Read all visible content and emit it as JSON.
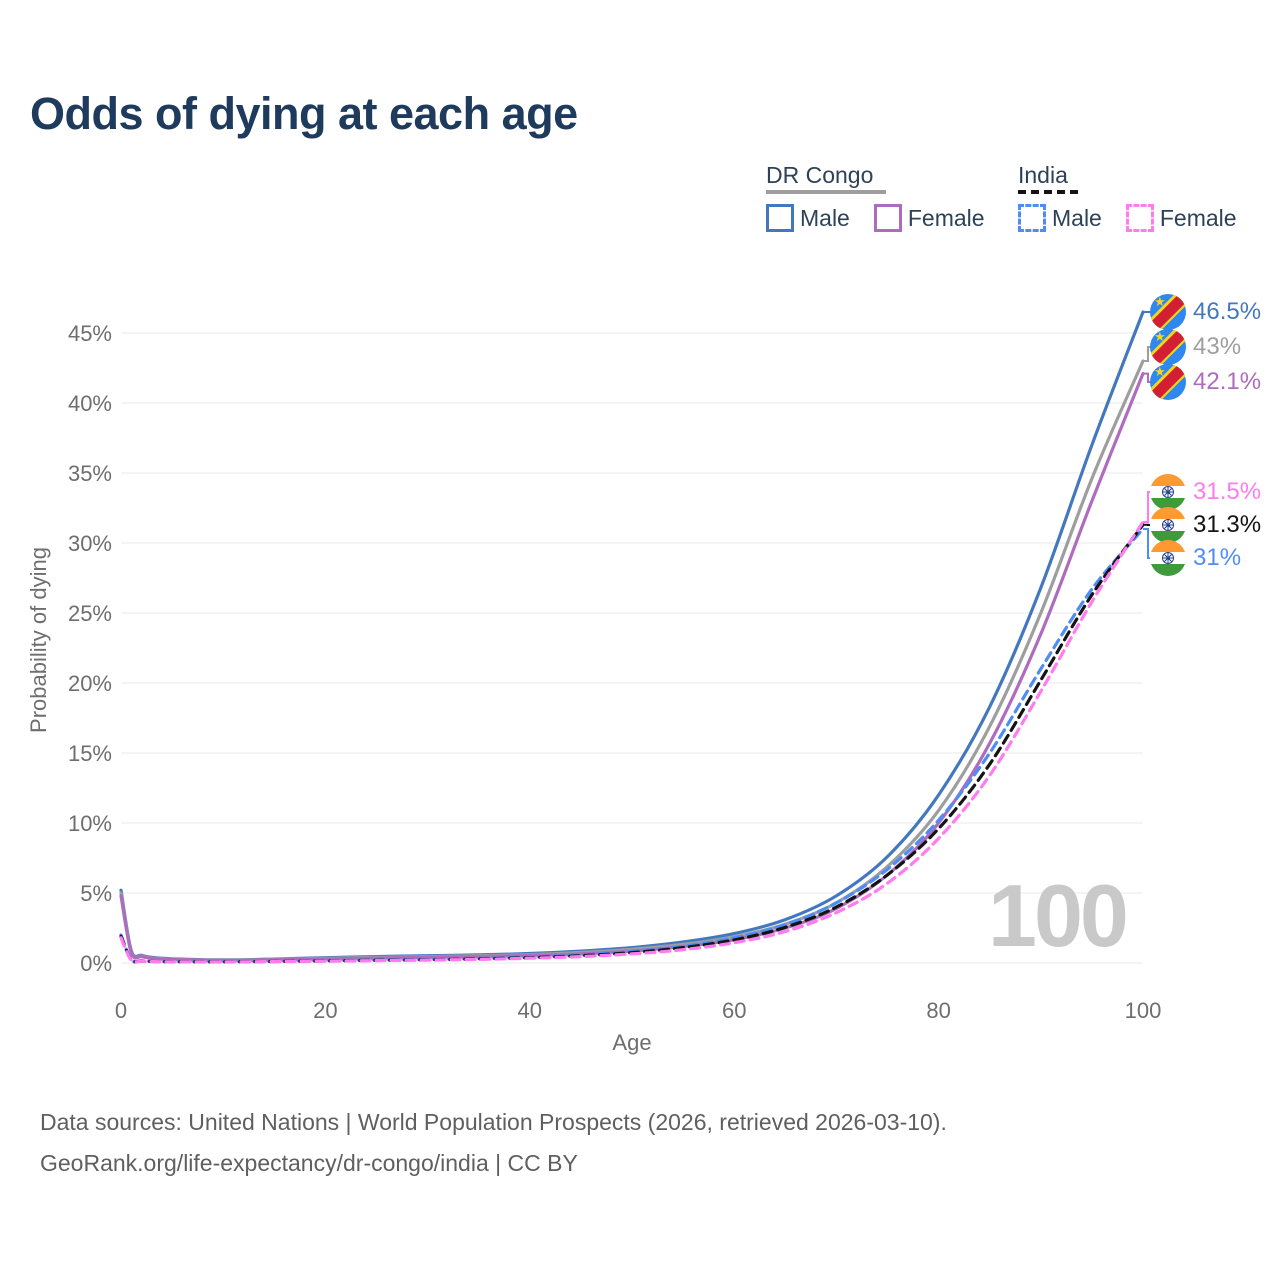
{
  "title": "Odds of dying at each age",
  "watermark": "100",
  "legend": {
    "groups": [
      {
        "title": "DR Congo",
        "line_style": "solid",
        "line_color": "#9e9e9e",
        "items": [
          {
            "label": "Male",
            "swatch_color": "#4478be",
            "swatch_style": "solid"
          },
          {
            "label": "Female",
            "swatch_color": "#af6cbe",
            "swatch_style": "solid"
          }
        ]
      },
      {
        "title": "India",
        "line_style": "dashed",
        "line_color": "#141414",
        "items": [
          {
            "label": "Male",
            "swatch_color": "#4f8df6",
            "swatch_style": "dashed"
          },
          {
            "label": "Female",
            "swatch_color": "#ff7bef",
            "swatch_style": "dashed"
          }
        ]
      }
    ]
  },
  "chart_data": {
    "type": "line",
    "title": "Odds of dying at each age",
    "xlabel": "Age",
    "ylabel": "Probability of dying",
    "x_ticks": [
      0,
      20,
      40,
      60,
      80,
      100
    ],
    "y_ticks_pct": [
      0,
      5,
      10,
      15,
      20,
      25,
      30,
      35,
      40,
      45
    ],
    "xlim": [
      0,
      100
    ],
    "ylim_pct": [
      0,
      47
    ],
    "grid": "horizontal",
    "legend_position": "top-right",
    "ages": [
      0,
      1,
      2,
      3,
      5,
      10,
      15,
      20,
      25,
      30,
      35,
      40,
      45,
      50,
      55,
      60,
      65,
      70,
      75,
      80,
      85,
      90,
      95,
      100
    ],
    "series": [
      {
        "name": "DR Congo Male",
        "country": "DR Congo",
        "sex": "Male",
        "style": "solid",
        "color": "#4478be",
        "end_label": "46.5%",
        "values_pct": [
          5.2,
          0.9,
          0.55,
          0.4,
          0.3,
          0.22,
          0.28,
          0.38,
          0.46,
          0.52,
          0.58,
          0.68,
          0.85,
          1.1,
          1.5,
          2.1,
          3.1,
          4.8,
          7.6,
          12.0,
          18.3,
          26.8,
          37.0,
          46.5
        ]
      },
      {
        "name": "DR Congo Average",
        "country": "DR Congo",
        "sex": "Both",
        "style": "solid",
        "color": "#9e9e9e",
        "end_label": "43%",
        "values_pct": [
          5.0,
          0.8,
          0.5,
          0.36,
          0.27,
          0.2,
          0.25,
          0.33,
          0.4,
          0.46,
          0.52,
          0.6,
          0.75,
          0.98,
          1.33,
          1.87,
          2.77,
          4.3,
          6.9,
          10.9,
          16.9,
          25.0,
          34.6,
          43.0
        ]
      },
      {
        "name": "DR Congo Female",
        "country": "DR Congo",
        "sex": "Female",
        "style": "solid",
        "color": "#af6cbe",
        "end_label": "42.1%",
        "values_pct": [
          4.8,
          0.75,
          0.46,
          0.33,
          0.25,
          0.18,
          0.22,
          0.28,
          0.35,
          0.4,
          0.46,
          0.54,
          0.66,
          0.86,
          1.18,
          1.66,
          2.5,
          3.9,
          6.3,
          10.0,
          15.7,
          23.5,
          33.0,
          42.1
        ]
      },
      {
        "name": "India Male",
        "country": "India",
        "sex": "Male",
        "style": "dashed",
        "color": "#4f8df6",
        "end_label": "31%",
        "values_pct": [
          2.0,
          0.25,
          0.15,
          0.12,
          0.1,
          0.09,
          0.12,
          0.17,
          0.21,
          0.26,
          0.32,
          0.42,
          0.58,
          0.82,
          1.2,
          1.8,
          2.75,
          4.3,
          6.7,
          10.2,
          15.0,
          21.0,
          26.7,
          31.0
        ]
      },
      {
        "name": "India Average",
        "country": "India",
        "sex": "Both",
        "style": "dashed",
        "color": "#141414",
        "end_label": "31.3%",
        "values_pct": [
          1.9,
          0.23,
          0.14,
          0.11,
          0.09,
          0.08,
          0.11,
          0.15,
          0.19,
          0.23,
          0.29,
          0.38,
          0.52,
          0.74,
          1.1,
          1.65,
          2.55,
          4.0,
          6.3,
          9.6,
          14.2,
          20.2,
          26.3,
          31.3
        ]
      },
      {
        "name": "India Female",
        "country": "India",
        "sex": "Female",
        "style": "dashed",
        "color": "#ff7bef",
        "end_label": "31.5%",
        "values_pct": [
          1.8,
          0.22,
          0.13,
          0.1,
          0.085,
          0.075,
          0.1,
          0.13,
          0.17,
          0.21,
          0.26,
          0.34,
          0.46,
          0.65,
          0.95,
          1.45,
          2.25,
          3.6,
          5.7,
          8.9,
          13.4,
          19.4,
          25.8,
          31.5
        ]
      }
    ]
  },
  "end_labels": [
    {
      "text": "46.5%",
      "flag": "cd",
      "flag_name": "dr-congo-flag",
      "color": "#4478be",
      "series": "DR Congo Male",
      "value_pct": 46.5
    },
    {
      "text": "43%",
      "flag": "cd",
      "flag_name": "dr-congo-flag",
      "color": "#9e9e9e",
      "series": "DR Congo Average",
      "value_pct": 43
    },
    {
      "text": "42.1%",
      "flag": "cd",
      "flag_name": "dr-congo-flag",
      "color": "#af6cbe",
      "series": "DR Congo Female",
      "value_pct": 42.1
    },
    {
      "text": "31.5%",
      "flag": "in",
      "flag_name": "india-flag",
      "color": "#ff7bef",
      "series": "India Female",
      "value_pct": 31.5
    },
    {
      "text": "31.3%",
      "flag": "in",
      "flag_name": "india-flag",
      "color": "#141414",
      "series": "India Average",
      "value_pct": 31.3
    },
    {
      "text": "31%",
      "flag": "in",
      "flag_name": "india-flag",
      "color": "#4f8df6",
      "series": "India Male",
      "value_pct": 31
    }
  ],
  "footer": {
    "line1": "Data sources: United Nations | World Population Prospects (2026, retrieved 2026-03-10).",
    "line2": "GeoRank.org/life-expectancy/dr-congo/india | CC BY"
  },
  "colors": {
    "title": "#1e3a5c",
    "axis_text": "#6e6e6e",
    "gridline": "#e8e8e8",
    "watermark": "#c9c9c9",
    "dr_congo_male": "#4478be",
    "dr_congo_average": "#9e9e9e",
    "dr_congo_female": "#af6cbe",
    "india_male": "#4f8df6",
    "india_average": "#141414",
    "india_female": "#ff7bef"
  }
}
